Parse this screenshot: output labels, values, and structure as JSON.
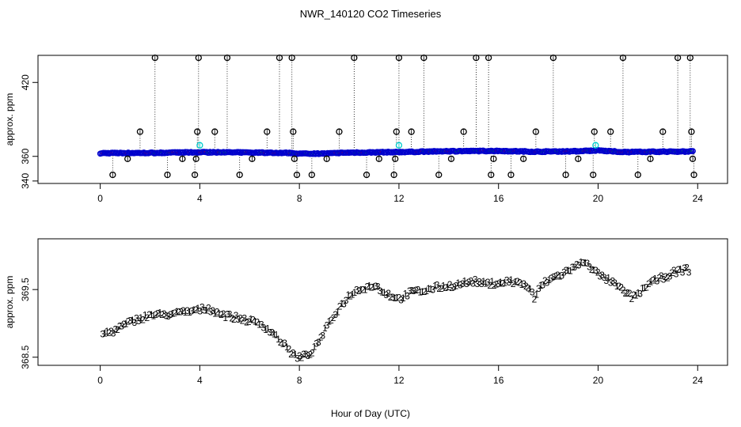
{
  "figure": {
    "title": "NWR_140120  CO2 Timeseries",
    "xlabel": "Hour of Day (UTC)"
  },
  "colors": {
    "blue": "#0000cc",
    "green": "#00bb00",
    "red": "#dd0000",
    "black": "#000000",
    "cyan": "#00cccc"
  },
  "chart_data": [
    {
      "type": "scatter",
      "panel": "top",
      "ylabel": "approx. ppm",
      "xlim": [
        -2.5,
        25.2
      ],
      "ylim": [
        338,
        442
      ],
      "xticks": [
        0,
        4,
        8,
        12,
        16,
        20,
        24
      ],
      "yticks": [
        340,
        360,
        420
      ],
      "baseline": [
        [
          0,
          362.6
        ],
        [
          2,
          362.8
        ],
        [
          4,
          363.3
        ],
        [
          6,
          363.1
        ],
        [
          7.5,
          362.8
        ],
        [
          7.8,
          362.5
        ],
        [
          8,
          362.2
        ],
        [
          9,
          362.3
        ],
        [
          10,
          363.0
        ],
        [
          12,
          363.5
        ],
        [
          14,
          364.2
        ],
        [
          16,
          364.4
        ],
        [
          17.5,
          363.8
        ],
        [
          19,
          364.1
        ],
        [
          19.7,
          364.6
        ],
        [
          20,
          364.8
        ],
        [
          21,
          363.5
        ],
        [
          22,
          363.7
        ],
        [
          24,
          364.0
        ]
      ],
      "outliers_black": [
        [
          0.5,
          345
        ],
        [
          1.1,
          358
        ],
        [
          1.6,
          380
        ],
        [
          2.2,
          440
        ],
        [
          2.7,
          345
        ],
        [
          3.3,
          358
        ],
        [
          3.8,
          345
        ],
        [
          3.85,
          358
        ],
        [
          3.9,
          380
        ],
        [
          3.95,
          440
        ],
        [
          4.6,
          380
        ],
        [
          5.1,
          440
        ],
        [
          5.6,
          345
        ],
        [
          6.1,
          358
        ],
        [
          6.7,
          380
        ],
        [
          7.2,
          440
        ],
        [
          7.7,
          440
        ],
        [
          7.75,
          380
        ],
        [
          7.8,
          358
        ],
        [
          7.9,
          345
        ],
        [
          8.5,
          345
        ],
        [
          9.1,
          358
        ],
        [
          9.6,
          380
        ],
        [
          10.2,
          440
        ],
        [
          10.7,
          345
        ],
        [
          11.2,
          358
        ],
        [
          11.8,
          345
        ],
        [
          11.85,
          358
        ],
        [
          11.9,
          380
        ],
        [
          12.0,
          440
        ],
        [
          12.5,
          380
        ],
        [
          13.0,
          440
        ],
        [
          13.6,
          345
        ],
        [
          14.1,
          358
        ],
        [
          14.6,
          380
        ],
        [
          15.1,
          440
        ],
        [
          15.6,
          440
        ],
        [
          15.7,
          345
        ],
        [
          15.8,
          358
        ],
        [
          16.5,
          345
        ],
        [
          17.0,
          358
        ],
        [
          17.5,
          380
        ],
        [
          18.2,
          440
        ],
        [
          18.7,
          345
        ],
        [
          19.2,
          358
        ],
        [
          19.8,
          345
        ],
        [
          19.85,
          380
        ],
        [
          20.5,
          380
        ],
        [
          21.0,
          440
        ],
        [
          21.6,
          345
        ],
        [
          22.1,
          358
        ],
        [
          22.6,
          380
        ],
        [
          23.2,
          440
        ],
        [
          23.7,
          440
        ],
        [
          23.75,
          380
        ],
        [
          23.8,
          358
        ],
        [
          23.85,
          345
        ]
      ],
      "outliers_cyan": [
        [
          4.0,
          369
        ],
        [
          12.0,
          369
        ],
        [
          19.9,
          369
        ]
      ]
    },
    {
      "type": "scatter",
      "panel": "bottom",
      "ylabel": "approx. ppm",
      "xlim": [
        -2.5,
        25.2
      ],
      "ylim": [
        368.38,
        370.25
      ],
      "xticks": [
        0,
        4,
        8,
        12,
        16,
        20,
        24
      ],
      "yticks": [
        368.5,
        369.5
      ],
      "ytick_labels": [
        "368.5",
        "369.5"
      ],
      "marker_labels": [
        "1",
        "2",
        "3"
      ],
      "profile": [
        [
          0.1,
          368.85
        ],
        [
          0.5,
          368.88
        ],
        [
          1.0,
          368.98
        ],
        [
          1.5,
          369.06
        ],
        [
          2.0,
          369.12
        ],
        [
          3.0,
          369.14
        ],
        [
          4.0,
          369.2
        ],
        [
          4.3,
          369.22
        ],
        [
          5.0,
          369.12
        ],
        [
          6.0,
          369.04
        ],
        [
          6.5,
          368.98
        ],
        [
          7.0,
          368.84
        ],
        [
          7.5,
          368.64
        ],
        [
          7.8,
          368.52
        ],
        [
          8.0,
          368.5
        ],
        [
          8.3,
          368.52
        ],
        [
          8.6,
          368.62
        ],
        [
          9.0,
          368.88
        ],
        [
          9.5,
          369.18
        ],
        [
          10.0,
          369.42
        ],
        [
          10.5,
          369.52
        ],
        [
          11.0,
          369.56
        ],
        [
          11.5,
          369.44
        ],
        [
          12.0,
          369.36
        ],
        [
          12.5,
          369.46
        ],
        [
          13.0,
          369.48
        ],
        [
          13.5,
          369.53
        ],
        [
          14.0,
          369.55
        ],
        [
          15.0,
          369.62
        ],
        [
          15.5,
          369.58
        ],
        [
          16.0,
          369.6
        ],
        [
          16.5,
          369.62
        ],
        [
          17.0,
          369.58
        ],
        [
          17.3,
          369.5
        ],
        [
          17.45,
          369.32
        ],
        [
          17.6,
          369.52
        ],
        [
          18.0,
          369.64
        ],
        [
          18.5,
          369.72
        ],
        [
          19.0,
          369.82
        ],
        [
          19.5,
          369.92
        ],
        [
          20.0,
          369.72
        ],
        [
          20.5,
          369.62
        ],
        [
          21.0,
          369.48
        ],
        [
          21.4,
          369.38
        ],
        [
          21.8,
          369.5
        ],
        [
          22.0,
          369.58
        ],
        [
          22.5,
          369.66
        ],
        [
          23.0,
          369.74
        ],
        [
          23.5,
          369.8
        ],
        [
          23.7,
          369.78
        ]
      ]
    }
  ]
}
